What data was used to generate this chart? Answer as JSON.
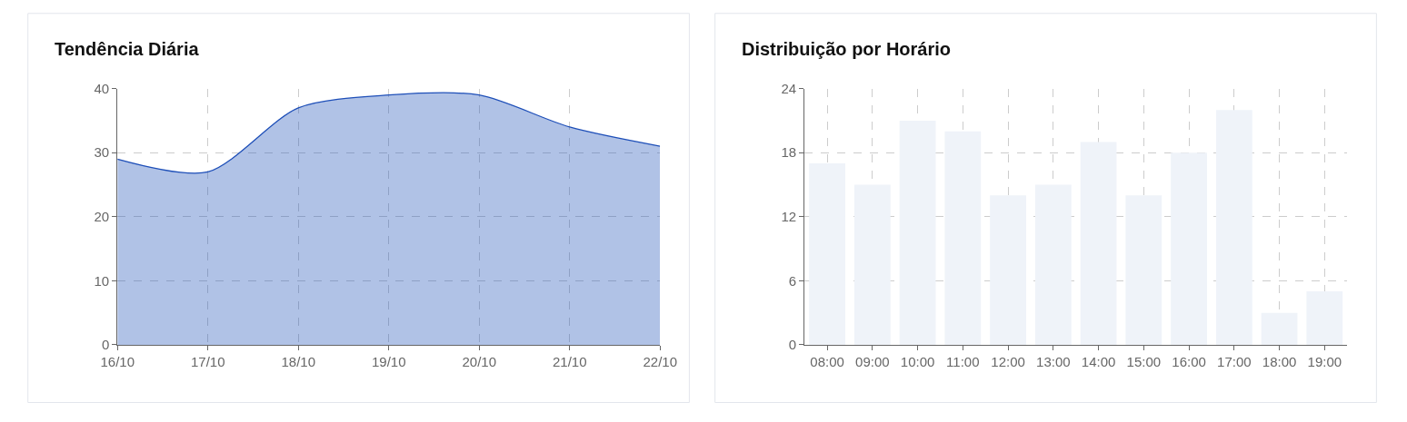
{
  "chart_data": [
    {
      "type": "area",
      "title": "Tendência Diária",
      "categories": [
        "16/10",
        "17/10",
        "18/10",
        "19/10",
        "20/10",
        "21/10",
        "22/10"
      ],
      "series": [
        {
          "color": "#1e4fb8",
          "values": [
            29,
            27,
            37,
            39,
            39,
            34,
            31
          ]
        }
      ],
      "ylim": [
        0,
        40
      ],
      "yticks": [
        0,
        10,
        20,
        30,
        40
      ],
      "grid": true
    },
    {
      "type": "bar",
      "title": "Distribuição por Horário",
      "categories": [
        "08:00",
        "09:00",
        "10:00",
        "11:00",
        "12:00",
        "13:00",
        "14:00",
        "15:00",
        "16:00",
        "17:00",
        "18:00",
        "19:00"
      ],
      "values": [
        17,
        15,
        21,
        20,
        14,
        15,
        19,
        14,
        18,
        22,
        3,
        5
      ],
      "color": "#eff3f9",
      "ylim": [
        0,
        24
      ],
      "yticks": [
        0,
        6,
        12,
        18,
        24
      ],
      "grid": true
    }
  ]
}
